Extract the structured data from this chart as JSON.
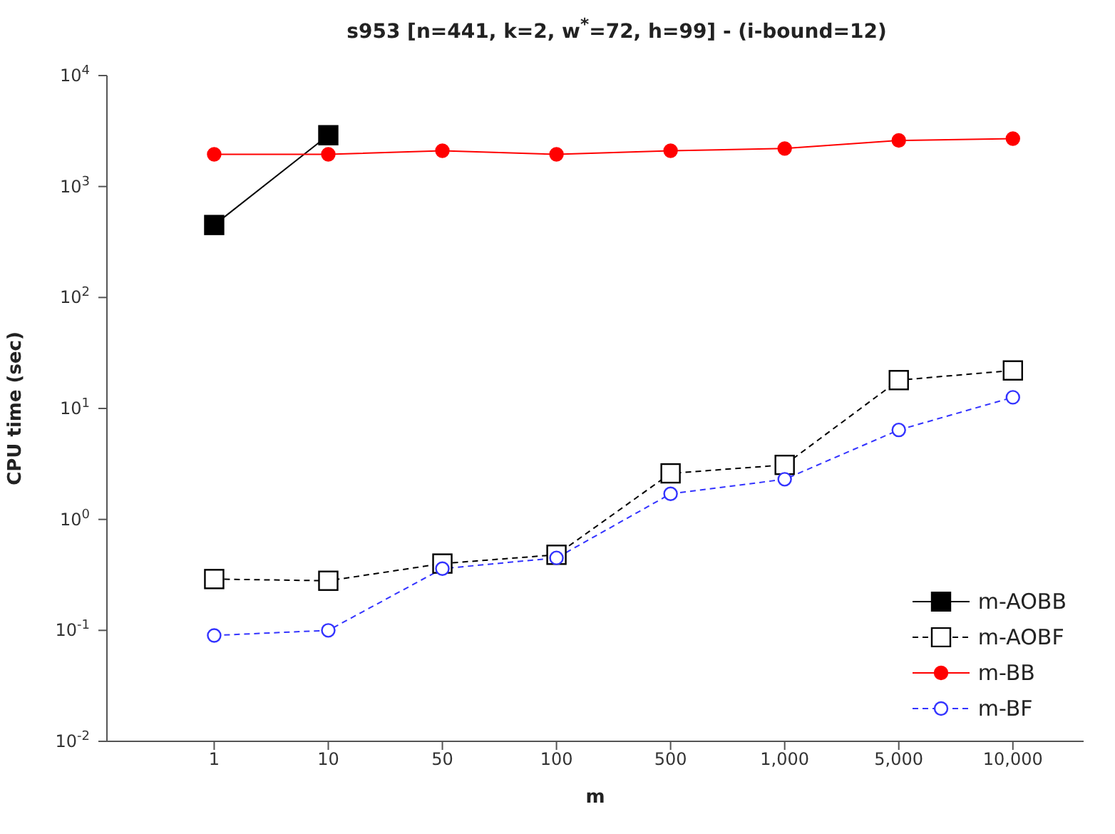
{
  "chart_data": {
    "type": "line",
    "title": "s953 [n=441, k=2, w$^{*}$=72, h=99] - (i-bound=12)",
    "xlabel": "m",
    "ylabel": "CPU time (sec)",
    "categories": [
      "1",
      "10",
      "50",
      "100",
      "500",
      "1,000",
      "5,000",
      "10,000"
    ],
    "log": "y",
    "ylim": [
      0.01,
      10000
    ],
    "yticks": [
      {
        "value": 0.01,
        "label": "10$^{-2}$"
      },
      {
        "value": 0.1,
        "label": "10$^{-1}$"
      },
      {
        "value": 1,
        "label": "10$^{0}$"
      },
      {
        "value": 10,
        "label": "10$^{1}$"
      },
      {
        "value": 100,
        "label": "10$^{2}$"
      },
      {
        "value": 1000,
        "label": "10$^{3}$"
      },
      {
        "value": 10000,
        "label": "10$^{4}$"
      }
    ],
    "grid": false,
    "legend": "bottom right",
    "series": [
      {
        "name": "m-AOBB",
        "color": "#000000",
        "marker": "square",
        "line_style": "solid",
        "values": [
          450,
          2900,
          null,
          null,
          null,
          null,
          null,
          null
        ]
      },
      {
        "name": "m-AOBF",
        "color": "#000000",
        "marker": "square",
        "line_style": "dashed",
        "values": [
          0.29,
          0.28,
          0.4,
          0.48,
          2.6,
          3.1,
          18,
          22
        ]
      },
      {
        "name": "m-BB",
        "color": "#ff0000",
        "marker": "circle",
        "line_style": "solid",
        "values": [
          1950,
          1950,
          2100,
          1950,
          2100,
          2200,
          2600,
          2700
        ]
      },
      {
        "name": "m-BF",
        "color": "#3333ff",
        "marker": "circle",
        "line_style": "dashed",
        "values": [
          0.09,
          0.1,
          0.36,
          0.45,
          1.7,
          2.3,
          6.4,
          12.6
        ]
      }
    ]
  }
}
